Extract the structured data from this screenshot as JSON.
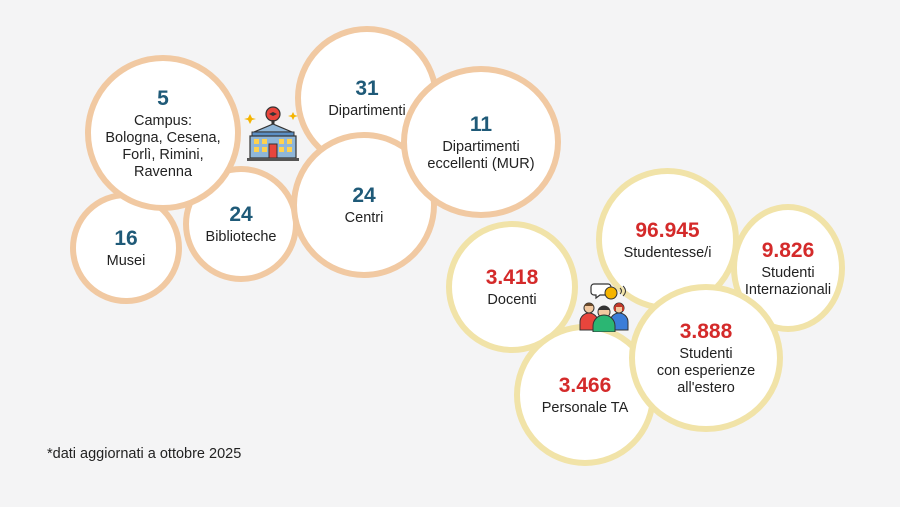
{
  "univ_stats": [
    {
      "number": "5",
      "label": "Campus:\nBologna, Cesena,\nForlì, Rimini,\nRavenna"
    },
    {
      "number": "31",
      "label": "Dipartimenti"
    },
    {
      "number": "11",
      "label": "Dipartimenti\neccellenti (MUR)"
    },
    {
      "number": "24",
      "label": "Biblioteche"
    },
    {
      "number": "24",
      "label": "Centri"
    },
    {
      "number": "16",
      "label": "Musei"
    }
  ],
  "people_stats": [
    {
      "number": "96.945",
      "label": "Studentesse/i"
    },
    {
      "number": "9.826",
      "label": "Studenti\nInternazionali"
    },
    {
      "number": "3.418",
      "label": "Docenti"
    },
    {
      "number": "3.888",
      "label": "Studenti\ncon esperienze\nall'estero"
    },
    {
      "number": "3.466",
      "label": "Personale TA"
    }
  ],
  "footnote": "*dati aggiornati a ottobre 2025",
  "colors": {
    "orange_ring": "#f1c9a2",
    "yellow_ring": "#f1e3a8",
    "blue_number": "#1f5a78",
    "red_number": "#d42a2a"
  },
  "icons": [
    "university-building-icon",
    "people-group-icon"
  ]
}
